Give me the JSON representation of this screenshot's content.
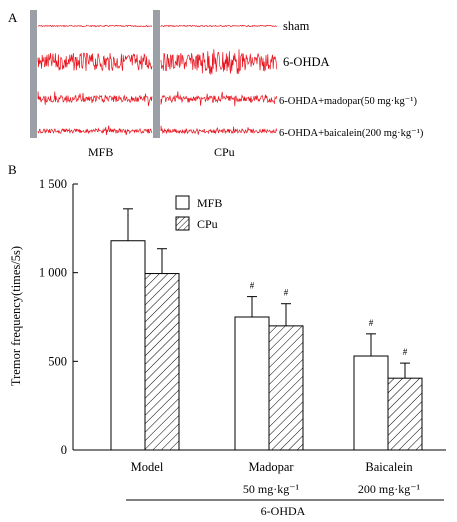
{
  "panel_a": {
    "label": "A",
    "conditions": [
      "sham",
      "6-OHDA",
      "6-OHDA+madopar(50 mg·kg⁻¹)",
      "6-OHDA+baicalein(200 mg·kg⁻¹)"
    ],
    "region_labels": [
      "MFB",
      "CPu"
    ],
    "trace_color": "#e8101a"
  },
  "panel_b": {
    "label": "B",
    "group_label": "6-OHDA",
    "chart_data": {
      "type": "bar",
      "categories": [
        "Model",
        "Madopar",
        "Baicalein"
      ],
      "category_sublabels": [
        "",
        "50 mg·kg⁻¹",
        "200 mg·kg⁻¹"
      ],
      "ylabel": "Tremor frequency(times/5s)",
      "ylim": [
        0,
        1500
      ],
      "yticks": [
        0,
        500,
        1000,
        1500
      ],
      "ytick_labels": [
        "0",
        "500",
        "1 000",
        "1 500"
      ],
      "legend_placement": "top-center",
      "series": [
        {
          "name": "MFB",
          "values": [
            1180,
            750,
            530
          ],
          "errors": [
            180,
            115,
            125
          ],
          "pattern": "open"
        },
        {
          "name": "CPu",
          "values": [
            995,
            700,
            405
          ],
          "errors": [
            140,
            125,
            85
          ],
          "pattern": "hatched"
        }
      ],
      "annotations": [
        {
          "series": 0,
          "index": 1,
          "text": "#"
        },
        {
          "series": 1,
          "index": 1,
          "text": "#"
        },
        {
          "series": 0,
          "index": 2,
          "text": "#"
        },
        {
          "series": 1,
          "index": 2,
          "text": "#"
        }
      ]
    }
  }
}
